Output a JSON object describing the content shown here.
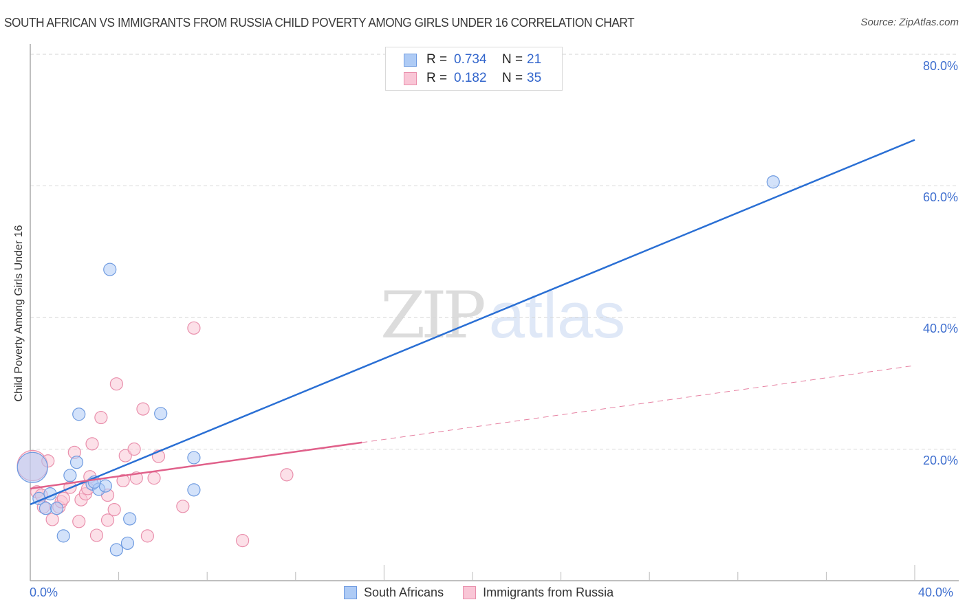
{
  "header": {
    "title": "SOUTH AFRICAN VS IMMIGRANTS FROM RUSSIA CHILD POVERTY AMONG GIRLS UNDER 16 CORRELATION CHART",
    "source": "Source: ZipAtlas.com"
  },
  "watermark": {
    "zip": "ZIP",
    "atlas": "atlas"
  },
  "legend_top": {
    "rows": [
      {
        "r_label": "R =",
        "r_value": "0.734",
        "n_label": "N =",
        "n_value": "21",
        "color": "#aecbf5",
        "border": "#6f9be0"
      },
      {
        "r_label": "R =",
        "r_value": "0.182",
        "n_label": "N =",
        "n_value": "35",
        "color": "#f9c6d6",
        "border": "#e98fac"
      }
    ]
  },
  "legend_bottom": {
    "items": [
      {
        "label": "South Africans",
        "color": "#aecbf5",
        "border": "#6f9be0"
      },
      {
        "label": "Immigrants from Russia",
        "color": "#f9c6d6",
        "border": "#e98fac"
      }
    ]
  },
  "axes": {
    "y_label": "Child Poverty Among Girls Under 16",
    "y_ticks": [
      "80.0%",
      "60.0%",
      "40.0%",
      "20.0%"
    ],
    "x_ticks": [
      "0.0%",
      "40.0%"
    ]
  },
  "chart_data": {
    "type": "scatter",
    "title": "SOUTH AFRICAN VS IMMIGRANTS FROM RUSSIA CHILD POVERTY AMONG GIRLS UNDER 16 CORRELATION CHART",
    "xlabel": "",
    "ylabel": "Child Poverty Among Girls Under 16",
    "xlim": [
      0,
      40
    ],
    "ylim": [
      0,
      80
    ],
    "grid": {
      "y_dashed": [
        20,
        40,
        60,
        80
      ]
    },
    "legend_position": "top-center and bottom",
    "series": [
      {
        "name": "South Africans",
        "color": "#6f9be0",
        "fill": "#aecbf5",
        "R": 0.734,
        "N": 21,
        "trendline": {
          "x": [
            0,
            40
          ],
          "y": [
            11.6,
            67.0
          ],
          "style": "solid",
          "color": "#2a6fd4"
        },
        "points": [
          {
            "x": 0.1,
            "y": 17.2,
            "size": "large"
          },
          {
            "x": 0.4,
            "y": 12.5
          },
          {
            "x": 0.7,
            "y": 11.0
          },
          {
            "x": 0.9,
            "y": 13.2
          },
          {
            "x": 1.2,
            "y": 11.0
          },
          {
            "x": 1.5,
            "y": 6.8
          },
          {
            "x": 1.8,
            "y": 16.0
          },
          {
            "x": 2.1,
            "y": 18.0
          },
          {
            "x": 2.2,
            "y": 25.3
          },
          {
            "x": 2.8,
            "y": 14.7
          },
          {
            "x": 3.1,
            "y": 13.9
          },
          {
            "x": 3.4,
            "y": 14.4
          },
          {
            "x": 3.6,
            "y": 47.3
          },
          {
            "x": 3.9,
            "y": 4.7
          },
          {
            "x": 4.4,
            "y": 5.7
          },
          {
            "x": 4.5,
            "y": 9.4
          },
          {
            "x": 5.9,
            "y": 25.4
          },
          {
            "x": 7.4,
            "y": 18.7
          },
          {
            "x": 7.4,
            "y": 13.8
          },
          {
            "x": 2.9,
            "y": 15.0
          },
          {
            "x": 33.6,
            "y": 60.6
          }
        ]
      },
      {
        "name": "Immigrants from Russia",
        "color": "#e98fac",
        "fill": "#f9c6d6",
        "R": 0.182,
        "N": 35,
        "trendline": {
          "x": [
            0,
            15
          ],
          "y": [
            14.0,
            21.0
          ],
          "style": "solid",
          "dashed_extension": {
            "x": [
              15,
              40
            ],
            "y": [
              21.0,
              32.7
            ]
          },
          "color": "#e0608a"
        },
        "points": [
          {
            "x": 0.1,
            "y": 17.5,
            "size": "large"
          },
          {
            "x": 0.3,
            "y": 13.5
          },
          {
            "x": 0.5,
            "y": 13.0
          },
          {
            "x": 0.6,
            "y": 11.2
          },
          {
            "x": 0.8,
            "y": 18.2
          },
          {
            "x": 1.0,
            "y": 9.3
          },
          {
            "x": 1.3,
            "y": 11.2
          },
          {
            "x": 1.4,
            "y": 12.0
          },
          {
            "x": 1.5,
            "y": 12.5
          },
          {
            "x": 1.8,
            "y": 14.2
          },
          {
            "x": 2.0,
            "y": 19.5
          },
          {
            "x": 2.2,
            "y": 9.0
          },
          {
            "x": 2.3,
            "y": 12.3
          },
          {
            "x": 2.5,
            "y": 13.2
          },
          {
            "x": 2.7,
            "y": 15.8
          },
          {
            "x": 2.8,
            "y": 20.8
          },
          {
            "x": 3.0,
            "y": 6.9
          },
          {
            "x": 3.2,
            "y": 24.8
          },
          {
            "x": 3.5,
            "y": 9.2
          },
          {
            "x": 3.5,
            "y": 13.0
          },
          {
            "x": 3.8,
            "y": 10.8
          },
          {
            "x": 3.9,
            "y": 29.9
          },
          {
            "x": 4.2,
            "y": 15.2
          },
          {
            "x": 4.3,
            "y": 19.0
          },
          {
            "x": 4.7,
            "y": 20.0
          },
          {
            "x": 4.8,
            "y": 15.6
          },
          {
            "x": 5.1,
            "y": 26.1
          },
          {
            "x": 5.3,
            "y": 6.8
          },
          {
            "x": 5.6,
            "y": 15.6
          },
          {
            "x": 5.8,
            "y": 18.9
          },
          {
            "x": 6.9,
            "y": 11.3
          },
          {
            "x": 7.4,
            "y": 38.4
          },
          {
            "x": 9.6,
            "y": 6.1
          },
          {
            "x": 11.6,
            "y": 16.1
          },
          {
            "x": 2.6,
            "y": 14.0
          }
        ]
      }
    ]
  }
}
